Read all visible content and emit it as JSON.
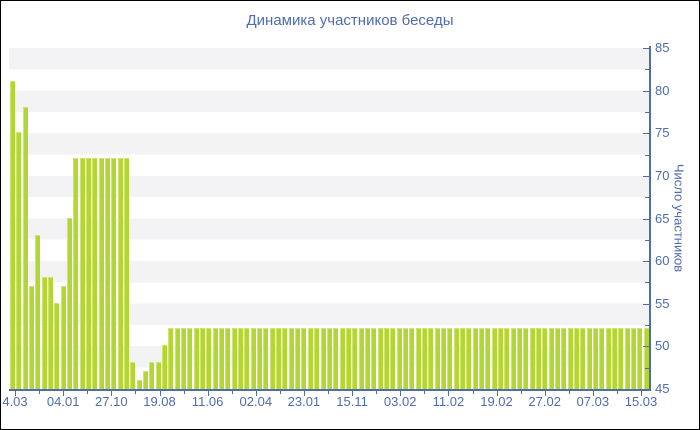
{
  "chart_data": {
    "type": "bar",
    "title": "Динамика участников беседы",
    "ylabel": "Число участников",
    "xlabel": "",
    "ylim": [
      45,
      85
    ],
    "y_major_step": 5,
    "y_minor_step": 2.5,
    "y_tick_labels": [
      "45",
      "50",
      "55",
      "60",
      "65",
      "70",
      "75",
      "80",
      "85"
    ],
    "x_tick_labels": [
      "4.03",
      "04.01",
      "27.10",
      "19.08",
      "11.06",
      "02.04",
      "23.01",
      "15.11",
      "03.02",
      "11.02",
      "19.02",
      "27.02",
      "07.03",
      "15.03"
    ],
    "legend": "none",
    "grid": "striped horizontal bands every 2.5 units",
    "values": [
      81,
      75,
      78,
      57,
      63,
      58,
      58,
      55,
      57,
      65,
      72,
      72,
      72,
      72,
      72,
      72,
      72,
      72,
      72,
      48,
      46,
      47,
      48,
      48,
      50,
      52,
      52,
      52,
      52,
      52,
      52,
      52,
      52,
      52,
      52,
      52,
      52,
      52,
      52,
      52,
      52,
      52,
      52,
      52,
      52,
      52,
      52,
      52,
      52,
      52,
      52,
      52,
      52,
      52,
      52,
      52,
      52,
      52,
      52,
      52,
      52,
      52,
      52,
      52,
      52,
      52,
      52,
      52,
      52,
      52,
      52,
      52,
      52,
      52,
      52,
      52,
      52,
      52,
      52,
      52,
      52,
      52,
      52,
      52,
      52,
      52,
      52,
      52,
      52,
      52,
      52,
      52,
      52,
      52,
      52,
      52,
      52,
      52,
      52,
      52,
      52
    ],
    "colors": {
      "bar": "#b2d732",
      "bar_highlight": "#d0e377",
      "axis": "#4f6cb0",
      "label_text": "#4f6cb0",
      "title_text": "#4d68b0",
      "stripe": "#f3f3f5",
      "background": "#ffffff"
    }
  }
}
